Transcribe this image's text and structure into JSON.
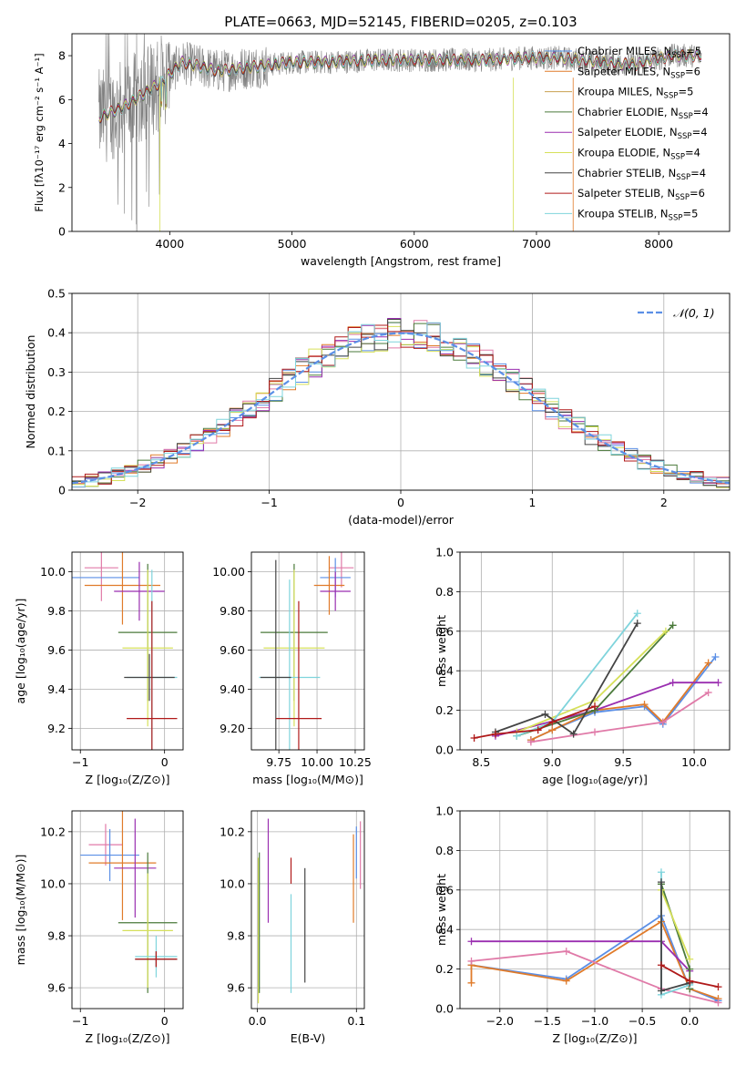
{
  "figure": {
    "title": "PLATE=0663, MJD=52145, FIBERID=0205, z=0.103"
  },
  "colors": {
    "Chabrier MILES": "#5b8fe6",
    "Salpeter MILES": "#e07b2a",
    "Kroupa MILES": "#c8a050",
    "Chabrier ELODIE": "#4a7a3a",
    "Salpeter ELODIE": "#9a2fb0",
    "Kroupa ELODIE": "#d6e05a",
    "Chabrier STELIB": "#444444",
    "Salpeter STELIB": "#b01a1a",
    "Kroupa STELIB": "#7fd4dc",
    "pink": "#e07aa8",
    "spectrum": "#808080"
  },
  "chart_data": [
    {
      "id": "spectrum",
      "type": "line",
      "xlabel": "wavelength [Angstrom, rest frame]",
      "ylabel": "Flux [fλ10⁻¹⁷ erg cm⁻² s⁻¹ A⁻¹]",
      "xlim": [
        3200,
        8580
      ],
      "ylim": [
        0,
        9
      ],
      "xticks": [
        4000,
        5000,
        6000,
        7000,
        8000
      ],
      "yticks": [
        0,
        2,
        4,
        6,
        8
      ],
      "grid": false,
      "legend_position": "top-right",
      "legend": [
        "Chabrier MILES, N_SSP=5",
        "Salpeter MILES, N_SSP=6",
        "Kroupa MILES, N_SSP=5",
        "Chabrier ELODIE, N_SSP=4",
        "Salpeter ELODIE, N_SSP=4",
        "Kroupa ELODIE, N_SSP=4",
        "Chabrier STELIB, N_SSP=4",
        "Salpeter STELIB, N_SSP=6",
        "Kroupa STELIB, N_SSP=5"
      ],
      "legend_keys": [
        "Chabrier MILES",
        "Salpeter MILES",
        "Kroupa MILES",
        "Chabrier ELODIE",
        "Salpeter ELODIE",
        "Kroupa ELODIE",
        "Chabrier STELIB",
        "Salpeter STELIB",
        "Kroupa STELIB"
      ],
      "continuum": {
        "x": [
          3420,
          3600,
          3800,
          3950,
          4100,
          4400,
          4700,
          5000,
          5300,
          5700,
          6000,
          6300,
          6600,
          6900,
          7200,
          7500,
          7800,
          8100,
          8350
        ],
        "y": [
          5.2,
          5.6,
          6.3,
          6.9,
          7.7,
          7.3,
          7.5,
          7.7,
          7.7,
          7.8,
          7.8,
          7.8,
          7.8,
          7.9,
          7.9,
          7.7,
          7.6,
          8.0,
          8.0
        ]
      }
    },
    {
      "id": "residuals",
      "type": "histogram",
      "xlabel": "(data-model)/error",
      "ylabel": "Normed distribution",
      "xlim": [
        -2.5,
        2.5
      ],
      "ylim": [
        0,
        0.5
      ],
      "xticks": [
        -2,
        -1,
        0,
        1,
        2
      ],
      "yticks": [
        0.0,
        0.1,
        0.2,
        0.3,
        0.4,
        0.5
      ],
      "grid": true,
      "legend": [
        "𝒩(0, 1)"
      ],
      "legend_position": "top-right",
      "bin_width": 0.1
    },
    {
      "id": "age-vs-Z",
      "type": "errorbar",
      "xlabel": "Z [log₁₀(Z/Z⊙)]",
      "ylabel": "age  [log₁₀(age/yr)]",
      "xlim": [
        -1.1,
        0.22
      ],
      "ylim": [
        9.09,
        10.1
      ],
      "xticks": [
        -1,
        0
      ],
      "yticks": [
        9.2,
        9.4,
        9.6,
        9.8,
        10.0
      ],
      "grid": true,
      "points": [
        {
          "key": "pink",
          "x": -0.75,
          "y": 10.02,
          "xerr": 0.2,
          "yerr": 0.17
        },
        {
          "key": "Chabrier MILES",
          "x": -0.7,
          "y": 9.97,
          "xerr": 0.4,
          "yerr": 0.0
        },
        {
          "key": "Salpeter MILES",
          "x": -0.5,
          "y": 9.93,
          "xerr": 0.45,
          "yerr": 0.2
        },
        {
          "key": "Salpeter ELODIE",
          "x": -0.3,
          "y": 9.9,
          "xerr": 0.3,
          "yerr": 0.15
        },
        {
          "key": "Chabrier ELODIE",
          "x": -0.2,
          "y": 9.69,
          "xerr": 0.35,
          "yerr": 0.35
        },
        {
          "key": "Kroupa ELODIE",
          "x": -0.2,
          "y": 9.61,
          "xerr": 0.3,
          "yerr": 0.4
        },
        {
          "key": "Kroupa STELIB",
          "x": -0.15,
          "y": 9.46,
          "xerr": 0.3,
          "yerr": 0.55
        },
        {
          "key": "Chabrier STELIB",
          "x": -0.18,
          "y": 9.46,
          "xerr": 0.3,
          "yerr": 0.12
        },
        {
          "key": "Salpeter STELIB",
          "x": -0.15,
          "y": 9.25,
          "xerr": 0.3,
          "yerr": 0.6
        }
      ]
    },
    {
      "id": "age-vs-mass",
      "type": "errorbar",
      "xlabel": "mass [log₁₀(M/M⊙)]",
      "ylabel": "",
      "xlim": [
        9.57,
        10.31
      ],
      "ylim": [
        9.09,
        10.1
      ],
      "xticks": [
        9.75,
        10.0,
        10.25
      ],
      "yticks": [
        9.2,
        9.4,
        9.6,
        9.8,
        10.0
      ],
      "grid": true,
      "points": [
        {
          "key": "pink",
          "x": 10.16,
          "y": 10.02,
          "xerr": 0.08,
          "yerr": 0.1
        },
        {
          "key": "Chabrier MILES",
          "x": 10.12,
          "y": 9.97,
          "xerr": 0.1,
          "yerr": 0.1
        },
        {
          "key": "Salpeter MILES",
          "x": 10.08,
          "y": 9.93,
          "xerr": 0.1,
          "yerr": 0.15
        },
        {
          "key": "Salpeter ELODIE",
          "x": 10.12,
          "y": 9.9,
          "xerr": 0.1,
          "yerr": 0.1
        },
        {
          "key": "Chabrier ELODIE",
          "x": 9.85,
          "y": 9.69,
          "xerr": 0.22,
          "yerr": 0.35
        },
        {
          "key": "Kroupa ELODIE",
          "x": 9.85,
          "y": 9.61,
          "xerr": 0.2,
          "yerr": 0.4
        },
        {
          "key": "Kroupa STELIB",
          "x": 9.82,
          "y": 9.46,
          "xerr": 0.2,
          "yerr": 0.5
        },
        {
          "key": "Chabrier STELIB",
          "x": 9.73,
          "y": 9.46,
          "xerr": 0.1,
          "yerr": 0.6
        },
        {
          "key": "Salpeter STELIB",
          "x": 9.88,
          "y": 9.25,
          "xerr": 0.15,
          "yerr": 0.6
        }
      ]
    },
    {
      "id": "mass-weight-vs-age",
      "type": "line",
      "xlabel": "age  [log₁₀(age/yr)]",
      "ylabel": "mass weight",
      "xlim": [
        8.35,
        10.25
      ],
      "ylim": [
        0,
        1
      ],
      "xticks": [
        8.5,
        9.0,
        9.5,
        10.0
      ],
      "yticks": [
        0.0,
        0.2,
        0.4,
        0.6,
        0.8,
        1.0
      ],
      "grid": true,
      "series": [
        {
          "key": "Chabrier MILES",
          "x": [
            8.85,
            9.0,
            9.3,
            9.65,
            9.78,
            10.15
          ],
          "y": [
            0.05,
            0.1,
            0.19,
            0.22,
            0.13,
            0.47
          ]
        },
        {
          "key": "Salpeter MILES",
          "x": [
            8.85,
            9.0,
            9.3,
            9.65,
            9.78,
            10.1
          ],
          "y": [
            0.05,
            0.1,
            0.2,
            0.23,
            0.14,
            0.44
          ]
        },
        {
          "key": "pink",
          "x": [
            8.85,
            9.3,
            9.78,
            10.1
          ],
          "y": [
            0.04,
            0.09,
            0.14,
            0.29
          ]
        },
        {
          "key": "Salpeter ELODIE",
          "x": [
            8.6,
            9.3,
            9.85,
            10.17
          ],
          "y": [
            0.07,
            0.2,
            0.34,
            0.34
          ]
        },
        {
          "key": "Chabrier ELODIE",
          "x": [
            8.75,
            9.3,
            9.85
          ],
          "y": [
            0.07,
            0.2,
            0.63
          ]
        },
        {
          "key": "Kroupa ELODIE",
          "x": [
            8.75,
            9.3,
            9.8
          ],
          "y": [
            0.09,
            0.25,
            0.6
          ]
        },
        {
          "key": "Kroupa STELIB",
          "x": [
            8.75,
            9.0,
            9.6
          ],
          "y": [
            0.07,
            0.14,
            0.69
          ]
        },
        {
          "key": "Chabrier STELIB",
          "x": [
            8.6,
            8.95,
            9.15,
            9.6
          ],
          "y": [
            0.09,
            0.18,
            0.08,
            0.64
          ]
        },
        {
          "key": "Salpeter STELIB",
          "x": [
            8.45,
            8.6,
            8.9,
            9.0,
            9.3
          ],
          "y": [
            0.06,
            0.08,
            0.1,
            0.14,
            0.22
          ]
        }
      ]
    },
    {
      "id": "mass-vs-Z",
      "type": "errorbar",
      "xlabel": "Z [log₁₀(Z/Z⊙)]",
      "ylabel": "mass [log₁₀(M/M⊙)]",
      "xlim": [
        -1.1,
        0.22
      ],
      "ylim": [
        9.52,
        10.28
      ],
      "xticks": [
        -1,
        0
      ],
      "yticks": [
        9.6,
        9.8,
        10.0,
        10.2
      ],
      "grid": true,
      "points": [
        {
          "key": "pink",
          "x": -0.7,
          "y": 10.15,
          "xerr": 0.2,
          "yerr": 0.08
        },
        {
          "key": "Chabrier MILES",
          "x": -0.65,
          "y": 10.11,
          "xerr": 0.35,
          "yerr": 0.1
        },
        {
          "key": "Salpeter MILES",
          "x": -0.5,
          "y": 10.08,
          "xerr": 0.4,
          "yerr": 0.22
        },
        {
          "key": "Salpeter ELODIE",
          "x": -0.35,
          "y": 10.06,
          "xerr": 0.25,
          "yerr": 0.19
        },
        {
          "key": "Chabrier ELODIE",
          "x": -0.2,
          "y": 9.85,
          "xerr": 0.35,
          "yerr": 0.27
        },
        {
          "key": "Kroupa ELODIE",
          "x": -0.2,
          "y": 9.82,
          "xerr": 0.3,
          "yerr": 0.22
        },
        {
          "key": "Kroupa STELIB",
          "x": -0.1,
          "y": 9.72,
          "xerr": 0.25,
          "yerr": 0.08
        },
        {
          "key": "Chabrier STELIB",
          "x": -0.1,
          "y": 9.71,
          "xerr": 0.25,
          "yerr": 0.03
        },
        {
          "key": "Salpeter STELIB",
          "x": -0.1,
          "y": 9.71,
          "xerr": 0.25,
          "yerr": 0.03
        }
      ]
    },
    {
      "id": "mass-vs-ebv",
      "type": "errorbar",
      "xlabel": "E(B-V)",
      "ylabel": "",
      "xlim": [
        -0.006,
        0.108
      ],
      "ylim": [
        9.52,
        10.28
      ],
      "xticks": [
        0.0,
        0.1
      ],
      "yticks": [
        9.6,
        9.8,
        10.0,
        10.2
      ],
      "grid": true,
      "points": [
        {
          "key": "Kroupa ELODIE",
          "x": 0.001,
          "y": 9.82,
          "xerr": 0,
          "yerr": 0.28
        },
        {
          "key": "Chabrier ELODIE",
          "x": 0.002,
          "y": 9.85,
          "xerr": 0,
          "yerr": 0.27
        },
        {
          "key": "Salpeter ELODIE",
          "x": 0.011,
          "y": 10.05,
          "xerr": 0,
          "yerr": 0.2
        },
        {
          "key": "Salpeter STELIB",
          "x": 0.034,
          "y": 10.05,
          "xerr": 0,
          "yerr": 0.05
        },
        {
          "key": "Kroupa STELIB",
          "x": 0.034,
          "y": 9.77,
          "xerr": 0,
          "yerr": 0.19
        },
        {
          "key": "Chabrier STELIB",
          "x": 0.048,
          "y": 9.84,
          "xerr": 0,
          "yerr": 0.22
        },
        {
          "key": "Salpeter MILES",
          "x": 0.097,
          "y": 10.02,
          "xerr": 0,
          "yerr": 0.17
        },
        {
          "key": "Chabrier MILES",
          "x": 0.1,
          "y": 10.12,
          "xerr": 0,
          "yerr": 0.1
        },
        {
          "key": "pink",
          "x": 0.104,
          "y": 10.11,
          "xerr": 0,
          "yerr": 0.13
        }
      ]
    },
    {
      "id": "mass-weight-vs-Z",
      "type": "line",
      "xlabel": "Z [log₁₀(Z/Z⊙)]",
      "ylabel": "mass weight",
      "xlim": [
        -2.42,
        0.42
      ],
      "ylim": [
        0,
        1
      ],
      "xticks": [
        -2.0,
        -1.5,
        -1.0,
        -0.5,
        0.0
      ],
      "yticks": [
        0.0,
        0.2,
        0.4,
        0.6,
        0.8,
        1.0
      ],
      "grid": true,
      "series": [
        {
          "key": "Chabrier MILES",
          "x": [
            -2.3,
            -1.3,
            -0.3,
            0.0,
            0.3
          ],
          "y": [
            0.22,
            0.15,
            0.47,
            0.1,
            0.04
          ]
        },
        {
          "key": "Salpeter MILES",
          "x": [
            -2.3,
            -2.3,
            -1.3,
            -0.3,
            0.0,
            0.3
          ],
          "y": [
            0.13,
            0.22,
            0.14,
            0.44,
            0.1,
            0.05
          ]
        },
        {
          "key": "pink",
          "x": [
            -2.3,
            -1.3,
            -0.3,
            0.3
          ],
          "y": [
            0.24,
            0.29,
            0.1,
            0.03
          ]
        },
        {
          "key": "Salpeter ELODIE",
          "x": [
            -2.3,
            -0.3,
            0.0
          ],
          "y": [
            0.34,
            0.34,
            0.19
          ]
        },
        {
          "key": "Chabrier ELODIE",
          "x": [
            -0.3,
            0.0,
            0.0
          ],
          "y": [
            0.63,
            0.2,
            0.1
          ]
        },
        {
          "key": "Kroupa ELODIE",
          "x": [
            -0.3,
            0.0
          ],
          "y": [
            0.6,
            0.25
          ]
        },
        {
          "key": "Kroupa STELIB",
          "x": [
            -0.3,
            -0.3,
            0.0
          ],
          "y": [
            0.69,
            0.07,
            0.12
          ]
        },
        {
          "key": "Chabrier STELIB",
          "x": [
            -0.3,
            -0.3,
            0.0
          ],
          "y": [
            0.64,
            0.09,
            0.13
          ]
        },
        {
          "key": "Salpeter STELIB",
          "x": [
            -0.3,
            0.0,
            0.3
          ],
          "y": [
            0.22,
            0.14,
            0.11
          ]
        }
      ]
    }
  ]
}
